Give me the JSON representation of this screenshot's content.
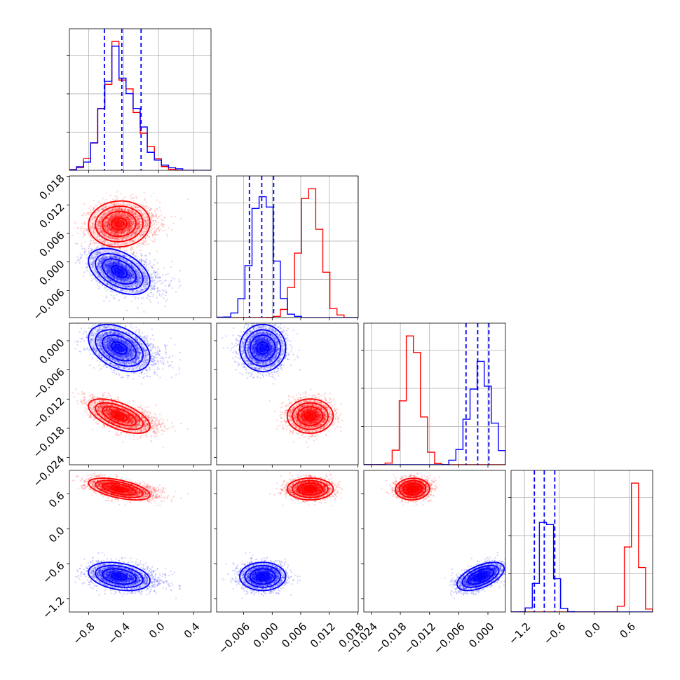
{
  "chart_data": {
    "type": "scatter",
    "kind": "corner-plot",
    "grid": true,
    "parameters": [
      {
        "key": "p0",
        "range": [
          -1.02,
          0.6
        ],
        "ticks": [
          -0.8,
          -0.4,
          0.0,
          0.4
        ],
        "tick_labels": [
          "−0.8",
          "−0.4",
          "0.0",
          "0.4"
        ]
      },
      {
        "key": "p1",
        "range": [
          -0.0117,
          0.0181
        ],
        "ticks": [
          -0.006,
          0.0,
          0.006,
          0.012,
          0.018
        ],
        "tick_labels": [
          "−0.006",
          "0.000",
          "0.006",
          "0.012",
          "0.018"
        ]
      },
      {
        "key": "p2",
        "range": [
          -0.0255,
          0.0036
        ],
        "ticks": [
          -0.024,
          -0.018,
          -0.012,
          -0.006,
          0.0
        ],
        "tick_labels": [
          "−0.024",
          "−0.018",
          "−0.012",
          "−0.006",
          "0.000"
        ]
      },
      {
        "key": "p3",
        "range": [
          -1.43,
          1.0
        ],
        "ticks": [
          -1.2,
          -0.6,
          0.0,
          0.6
        ],
        "tick_labels": [
          "−1.2",
          "−0.6",
          "0.0",
          "0.6"
        ]
      }
    ],
    "series": [
      {
        "color": "#ff0000",
        "means": [
          -0.45,
          0.008,
          -0.0155,
          0.68
        ],
        "std": [
          0.16,
          0.0022,
          0.0016,
          0.085
        ],
        "corr": [
          [
            1,
            0.05,
            -0.6,
            -0.55
          ],
          [
            0.05,
            1,
            0,
            0
          ],
          [
            -0.6,
            0,
            1,
            0.05
          ],
          [
            -0.55,
            0,
            0.05,
            1
          ]
        ],
        "hist_peak_x": [
          -0.46,
          0.0082,
          -0.0158,
          0.62
        ]
      },
      {
        "color": "#0000ff",
        "means": [
          -0.45,
          -0.002,
          -0.0015,
          -0.82
        ],
        "std": [
          0.16,
          0.0022,
          0.0022,
          0.11
        ],
        "corr": [
          [
            1,
            -0.45,
            -0.4,
            -0.3
          ],
          [
            -0.45,
            1,
            0,
            0
          ],
          [
            -0.4,
            0,
            1,
            0.55
          ],
          [
            -0.3,
            0,
            0.55,
            1
          ]
        ],
        "quantiles": [
          [
            -0.62,
            -0.42,
            -0.2
          ],
          [
            -0.0048,
            -0.0022,
            0.0003
          ],
          [
            -0.0045,
            -0.0021,
            0.0002
          ],
          [
            -1.03,
            -0.86,
            -0.68
          ]
        ]
      }
    ]
  }
}
